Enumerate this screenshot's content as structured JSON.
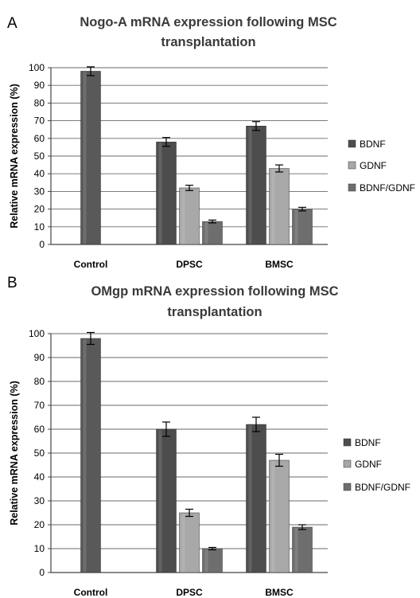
{
  "chart_data": [
    {
      "panel_label": "A",
      "type": "bar",
      "title": "Nogo-A mRNA expression following MSC transplantation",
      "title_lines": [
        "Nogo-A mRNA expression following MSC",
        "transplantation"
      ],
      "ylabel": "Relative mRNA expression (%)",
      "xlabel": "",
      "ylim": [
        0,
        100
      ],
      "yticks": [
        0,
        10,
        20,
        30,
        40,
        50,
        60,
        70,
        80,
        90,
        100
      ],
      "grid": true,
      "legend_position": "right",
      "categories": [
        "Control",
        "DPSC",
        "BMSC"
      ],
      "control": {
        "value": 98,
        "error": 2.5
      },
      "series": [
        {
          "name": "BDNF",
          "values": [
            null,
            58,
            67
          ],
          "errors": [
            null,
            2.5,
            2.5
          ],
          "color": "#4d4d4d"
        },
        {
          "name": "GDNF",
          "values": [
            null,
            32,
            43
          ],
          "errors": [
            null,
            1.5,
            2.0
          ],
          "color": "#a8a8a8"
        },
        {
          "name": "BDNF/GDNF",
          "values": [
            null,
            13,
            20
          ],
          "errors": [
            null,
            0.8,
            1.0
          ],
          "color": "#6e6e6e"
        }
      ]
    },
    {
      "panel_label": "B",
      "type": "bar",
      "title": "OMgp mRNA expression following MSC transplantation",
      "title_lines": [
        "OMgp mRNA expression following MSC",
        "transplantation"
      ],
      "ylabel": "Relative mRNA expression (%)",
      "xlabel": "",
      "ylim": [
        0,
        100
      ],
      "yticks": [
        0,
        10,
        20,
        30,
        40,
        50,
        60,
        70,
        80,
        90,
        100
      ],
      "grid": true,
      "legend_position": "right",
      "categories": [
        "Control",
        "DPSC",
        "BMSC"
      ],
      "control": {
        "value": 98,
        "error": 2.5
      },
      "series": [
        {
          "name": "BDNF",
          "values": [
            null,
            60,
            62
          ],
          "errors": [
            null,
            3.0,
            3.0
          ],
          "color": "#4d4d4d"
        },
        {
          "name": "GDNF",
          "values": [
            null,
            25,
            47
          ],
          "errors": [
            null,
            1.5,
            2.5
          ],
          "color": "#a8a8a8"
        },
        {
          "name": "BDNF/GDNF",
          "values": [
            null,
            10,
            19
          ],
          "errors": [
            null,
            0.5,
            1.0
          ],
          "color": "#6e6e6e"
        }
      ]
    }
  ]
}
